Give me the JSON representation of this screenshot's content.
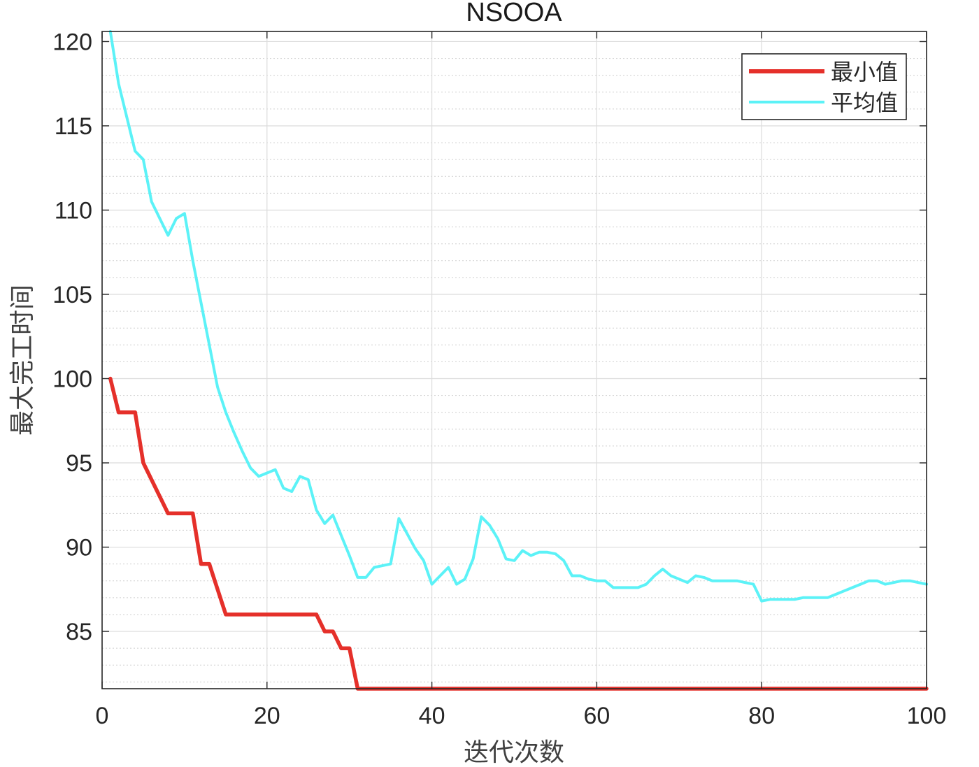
{
  "chart_data": {
    "type": "line",
    "title": "NSOOA",
    "xlabel": "迭代次数",
    "ylabel": "最大完工时间",
    "xlim": [
      0,
      100
    ],
    "ylim": [
      81.6,
      120.6
    ],
    "xticks": [
      0,
      20,
      40,
      60,
      80,
      100
    ],
    "yticks": [
      85,
      90,
      95,
      100,
      105,
      110,
      115,
      120
    ],
    "grid": true,
    "minor_grid": true,
    "legend_position": "top-right",
    "series": [
      {
        "name": "最小值",
        "color": "#e5302a",
        "x": [
          1,
          2,
          3,
          4,
          5,
          6,
          7,
          8,
          9,
          10,
          11,
          12,
          13,
          14,
          15,
          16,
          17,
          18,
          19,
          20,
          21,
          22,
          23,
          24,
          25,
          26,
          27,
          28,
          29,
          30,
          31,
          32,
          33,
          34,
          35,
          36,
          37,
          38,
          39,
          40,
          41,
          42,
          43,
          44,
          45,
          46,
          47,
          48,
          49,
          50,
          51,
          52,
          53,
          54,
          55,
          56,
          57,
          58,
          59,
          60,
          61,
          62,
          63,
          64,
          65,
          66,
          67,
          68,
          69,
          70,
          71,
          72,
          73,
          74,
          75,
          76,
          77,
          78,
          79,
          80,
          81,
          82,
          83,
          84,
          85,
          86,
          87,
          88,
          89,
          90,
          91,
          92,
          93,
          94,
          95,
          96,
          97,
          98,
          99,
          100
        ],
        "values": [
          100,
          98,
          98,
          98,
          95,
          94,
          93,
          92,
          92,
          92,
          92,
          89,
          89,
          87.5,
          86,
          86,
          86,
          86,
          86,
          86,
          86,
          86,
          86,
          86,
          86,
          86,
          85,
          85,
          84,
          84,
          81.6,
          81.6,
          81.6,
          81.6,
          81.6,
          81.6,
          81.6,
          81.6,
          81.6,
          81.6,
          81.6,
          81.6,
          81.6,
          81.6,
          81.6,
          81.6,
          81.6,
          81.6,
          81.6,
          81.6,
          81.6,
          81.6,
          81.6,
          81.6,
          81.6,
          81.6,
          81.6,
          81.6,
          81.6,
          81.6,
          81.6,
          81.6,
          81.6,
          81.6,
          81.6,
          81.6,
          81.6,
          81.6,
          81.6,
          81.6,
          81.6,
          81.6,
          81.6,
          81.6,
          81.6,
          81.6,
          81.6,
          81.6,
          81.6,
          81.6,
          81.6,
          81.6,
          81.6,
          81.6,
          81.6,
          81.6,
          81.6,
          81.6,
          81.6,
          81.6,
          81.6,
          81.6,
          81.6,
          81.6,
          81.6,
          81.6,
          81.6,
          81.6,
          81.6,
          81.6
        ]
      },
      {
        "name": "平均值",
        "color": "#5cf2f7",
        "x": [
          1,
          2,
          3,
          4,
          5,
          6,
          7,
          8,
          9,
          10,
          11,
          12,
          13,
          14,
          15,
          16,
          17,
          18,
          19,
          20,
          21,
          22,
          23,
          24,
          25,
          26,
          27,
          28,
          29,
          30,
          31,
          32,
          33,
          34,
          35,
          36,
          37,
          38,
          39,
          40,
          41,
          42,
          43,
          44,
          45,
          46,
          47,
          48,
          49,
          50,
          51,
          52,
          53,
          54,
          55,
          56,
          57,
          58,
          59,
          60,
          61,
          62,
          63,
          64,
          65,
          66,
          67,
          68,
          69,
          70,
          71,
          72,
          73,
          74,
          75,
          76,
          77,
          78,
          79,
          80,
          81,
          82,
          83,
          84,
          85,
          86,
          87,
          88,
          89,
          90,
          91,
          92,
          93,
          94,
          95,
          96,
          97,
          98,
          99,
          100
        ],
        "values": [
          120.6,
          117.5,
          115.5,
          113.5,
          113,
          110.5,
          109.5,
          108.5,
          109.5,
          109.8,
          107,
          104.5,
          102,
          99.5,
          98,
          96.8,
          95.7,
          94.7,
          94.2,
          94.4,
          94.6,
          93.5,
          93.3,
          94.2,
          94,
          92.2,
          91.4,
          91.9,
          90.7,
          89.5,
          88.2,
          88.2,
          88.8,
          88.9,
          89,
          91.7,
          90.8,
          89.9,
          89.2,
          87.8,
          88.3,
          88.8,
          87.8,
          88.1,
          89.3,
          91.8,
          91.3,
          90.5,
          89.3,
          89.2,
          89.8,
          89.5,
          89.7,
          89.7,
          89.6,
          89.2,
          88.3,
          88.3,
          88.1,
          88,
          88,
          87.6,
          87.6,
          87.6,
          87.6,
          87.8,
          88.3,
          88.7,
          88.3,
          88.1,
          87.9,
          88.3,
          88.2,
          88,
          88,
          88,
          88,
          87.9,
          87.8,
          86.8,
          86.9,
          86.9,
          86.9,
          86.9,
          87,
          87,
          87,
          87,
          87.2,
          87.4,
          87.6,
          87.8,
          88,
          88,
          87.8,
          87.9,
          88,
          88,
          87.9,
          87.8
        ]
      }
    ]
  }
}
